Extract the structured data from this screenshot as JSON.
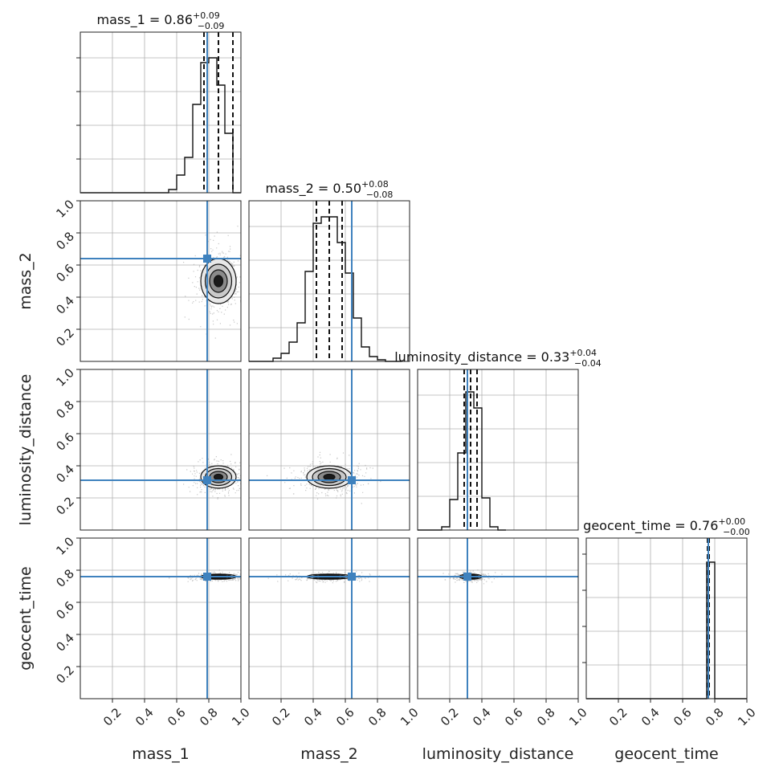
{
  "chart_data": {
    "type": "corner",
    "parameters": [
      {
        "name": "mass_1",
        "xlabel": "mass_1",
        "ylabel": "",
        "title": {
          "base": "mass_1 = 0.86",
          "plus": "+0.09",
          "minus": "−0.09"
        },
        "quantiles": [
          0.77,
          0.86,
          0.95
        ],
        "truth": 0.79,
        "hist_edges": [
          0.5,
          0.55,
          0.6,
          0.65,
          0.7,
          0.75,
          0.8,
          0.85,
          0.9,
          0.95,
          1.0
        ],
        "hist_heights": [
          0.0,
          0.02,
          0.11,
          0.22,
          0.55,
          0.81,
          0.84,
          0.67,
          0.37,
          0.0
        ]
      },
      {
        "name": "mass_2",
        "xlabel": "mass_2",
        "ylabel": "mass_2",
        "title": {
          "base": "mass_2 = 0.50",
          "plus": "+0.08",
          "minus": "−0.08"
        },
        "quantiles": [
          0.42,
          0.5,
          0.58
        ],
        "truth": 0.64,
        "hist_edges": [
          0.05,
          0.15,
          0.2,
          0.25,
          0.3,
          0.35,
          0.4,
          0.45,
          0.5,
          0.55,
          0.6,
          0.65,
          0.7,
          0.75,
          0.8,
          0.85,
          0.95
        ],
        "hist_heights": [
          0.0,
          0.02,
          0.05,
          0.12,
          0.24,
          0.56,
          0.86,
          0.9,
          0.9,
          0.74,
          0.55,
          0.27,
          0.09,
          0.03,
          0.01,
          0.0
        ]
      },
      {
        "name": "luminosity_distance",
        "xlabel": "luminosity_distance",
        "ylabel": "luminosity_distance",
        "title": {
          "base": "luminosity_distance = 0.33",
          "plus": "+0.04",
          "minus": "−0.04"
        },
        "quantiles": [
          0.29,
          0.33,
          0.37
        ],
        "truth": 0.31,
        "hist_edges": [
          0.05,
          0.15,
          0.2,
          0.25,
          0.3,
          0.35,
          0.4,
          0.45,
          0.5,
          0.55
        ],
        "hist_heights": [
          0.0,
          0.02,
          0.19,
          0.48,
          0.86,
          0.76,
          0.2,
          0.02,
          0.0
        ]
      },
      {
        "name": "geocent_time",
        "xlabel": "geocent_time",
        "ylabel": "geocent_time",
        "title": {
          "base": "geocent_time = 0.76",
          "plus": "+0.00",
          "minus": "−0.00"
        },
        "quantiles": [
          0.755,
          0.76,
          0.765
        ],
        "truth": 0.76,
        "hist_edges": [
          0.0,
          0.75,
          0.8,
          1.0
        ],
        "hist_heights": [
          0.0,
          0.85,
          0.0
        ]
      }
    ],
    "xlim": [
      0,
      1
    ],
    "ylim": [
      0,
      1
    ],
    "ticks": [
      0.2,
      0.4,
      0.6,
      0.8,
      1.0
    ],
    "tick_labels": [
      "0.2",
      "0.4",
      "0.6",
      "0.8",
      "1.0"
    ],
    "grid": true,
    "pairs": [
      {
        "row": 1,
        "col": 0,
        "center": [
          0.86,
          0.5
        ],
        "sigma": [
          0.055,
          0.07
        ]
      },
      {
        "row": 2,
        "col": 0,
        "center": [
          0.86,
          0.33
        ],
        "sigma": [
          0.055,
          0.035
        ]
      },
      {
        "row": 2,
        "col": 1,
        "center": [
          0.5,
          0.33
        ],
        "sigma": [
          0.07,
          0.035
        ]
      },
      {
        "row": 3,
        "col": 0,
        "center": [
          0.86,
          0.76
        ],
        "sigma": [
          0.055,
          0.008
        ]
      },
      {
        "row": 3,
        "col": 1,
        "center": [
          0.5,
          0.76
        ],
        "sigma": [
          0.07,
          0.008
        ]
      },
      {
        "row": 3,
        "col": 2,
        "center": [
          0.33,
          0.76
        ],
        "sigma": [
          0.035,
          0.008
        ]
      }
    ],
    "colors": {
      "truth": "#3f82be",
      "contour_fill": "#808080",
      "points": "#999999",
      "hist": "#111111",
      "grid": "#b0b0b0"
    }
  }
}
